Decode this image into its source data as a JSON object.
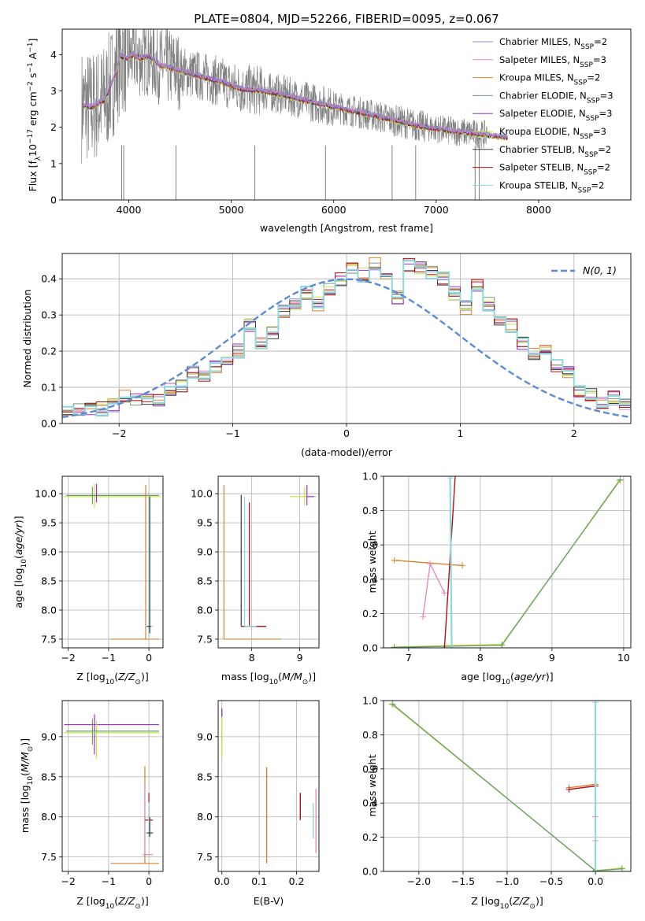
{
  "figure": {
    "title": "PLATE=0804, MJD=52266, FIBERID=0095, z=0.067"
  },
  "colors": {
    "Chabrier MILES": "#8c8cd0",
    "Salpeter MILES": "#e88ac0",
    "Kroupa MILES": "#d9822b",
    "Chabrier ELODIE": "#6f9f6f",
    "Salpeter ELODIE": "#9b30c8",
    "Kroupa ELODIE": "#c8e04a",
    "Chabrier STELIB": "#3a3a3a",
    "Salpeter STELIB": "#b01010",
    "Kroupa STELIB": "#8fd8dc",
    "data": "#808080",
    "normal": "#5b8bd6"
  },
  "chart_data": [
    {
      "id": "spectrum",
      "type": "line",
      "xlabel": "wavelength [Angstrom, rest frame]",
      "ylabel": "Flux [f_λ 10^-17 erg cm^-2 s^-1 A^-1]",
      "xlim": [
        3350,
        8900
      ],
      "ylim": [
        0,
        4.7
      ],
      "xticks": [
        4000,
        5000,
        6000,
        7000,
        8000
      ],
      "yticks": [
        0,
        1,
        2,
        3,
        4
      ],
      "grid": false,
      "legend_position": "top-right",
      "legend": [
        {
          "label": "Chabrier MILES, N",
          "sub": "SSP",
          "eq": "=2",
          "key": "Chabrier MILES"
        },
        {
          "label": "Salpeter MILES, N",
          "sub": "SSP",
          "eq": "=3",
          "key": "Salpeter MILES"
        },
        {
          "label": "Kroupa MILES, N",
          "sub": "SSP",
          "eq": "=2",
          "key": "Kroupa MILES"
        },
        {
          "label": "Chabrier ELODIE, N",
          "sub": "SSP",
          "eq": "=3",
          "key": "Chabrier ELODIE"
        },
        {
          "label": "Salpeter ELODIE, N",
          "sub": "SSP",
          "eq": "=3",
          "key": "Salpeter ELODIE"
        },
        {
          "label": "Kroupa ELODIE, N",
          "sub": "SSP",
          "eq": "=3",
          "key": "Kroupa ELODIE"
        },
        {
          "label": "Chabrier STELIB, N",
          "sub": "SSP",
          "eq": "=2",
          "key": "Chabrier STELIB"
        },
        {
          "label": "Salpeter STELIB, N",
          "sub": "SSP",
          "eq": "=2",
          "key": "Salpeter STELIB"
        },
        {
          "label": "Kroupa STELIB, N",
          "sub": "SSP",
          "eq": "=2",
          "key": "Kroupa STELIB"
        }
      ],
      "model_continuum": {
        "x": [
          3560,
          3640,
          3700,
          3760,
          3800,
          3860,
          3920,
          3980,
          4050,
          4100,
          4200,
          4300,
          4400,
          4500,
          4700,
          4900,
          5100,
          5300,
          5500,
          5700,
          5900,
          6100,
          6300,
          6500,
          6700,
          6900,
          7100,
          7300,
          7500,
          7700
        ],
        "y": [
          2.6,
          2.55,
          2.65,
          2.75,
          3.0,
          3.4,
          3.95,
          3.9,
          4.0,
          3.9,
          3.95,
          3.7,
          3.65,
          3.55,
          3.4,
          3.25,
          3.05,
          3.0,
          2.9,
          2.75,
          2.62,
          2.5,
          2.38,
          2.25,
          2.12,
          2.0,
          1.92,
          1.85,
          1.78,
          1.72
        ]
      }
    },
    {
      "id": "residuals",
      "type": "line",
      "xlabel": "(data-model)/error",
      "ylabel": "Normed distribution",
      "xlim": [
        -2.5,
        2.5
      ],
      "ylim": [
        0,
        0.47
      ],
      "xticks": [
        -2,
        -1,
        0,
        1,
        2
      ],
      "yticks": [
        0.0,
        0.1,
        0.2,
        0.3,
        0.4
      ],
      "grid": true,
      "legend_position": "top-right",
      "normal_label": "N(0, 1)",
      "bin_width": 0.1,
      "bin_start": -2.5,
      "hist": [
        0.03,
        0.035,
        0.04,
        0.04,
        0.05,
        0.075,
        0.065,
        0.07,
        0.06,
        0.095,
        0.1,
        0.14,
        0.135,
        0.16,
        0.18,
        0.2,
        0.27,
        0.22,
        0.25,
        0.31,
        0.33,
        0.36,
        0.33,
        0.37,
        0.4,
        0.43,
        0.41,
        0.44,
        0.4,
        0.35,
        0.44,
        0.43,
        0.42,
        0.4,
        0.36,
        0.32,
        0.38,
        0.33,
        0.29,
        0.27,
        0.22,
        0.19,
        0.2,
        0.16,
        0.14,
        0.09,
        0.08,
        0.06,
        0.07,
        0.05
      ]
    },
    {
      "id": "age-vs-Z",
      "type": "scatter",
      "xlabel": "Z [log10(Z/Z_sun)]",
      "ylabel": "age [log10(age/yr)]",
      "xlim": [
        -2.15,
        0.35
      ],
      "ylim": [
        7.35,
        10.3
      ],
      "xticks": [
        -2,
        -1,
        0
      ],
      "yticks": [
        7.5,
        8.0,
        8.5,
        9.0,
        9.5,
        10.0
      ],
      "grid": true
    },
    {
      "id": "age-vs-mass",
      "type": "scatter",
      "xlabel": "mass [log10(M/M_sun)]",
      "ylabel": "",
      "xlim": [
        7.3,
        9.4
      ],
      "ylim": [
        7.35,
        10.3
      ],
      "xticks": [
        8,
        9
      ],
      "yticks": [
        7.5,
        8.0,
        8.5,
        9.0,
        9.5,
        10.0
      ],
      "grid": true
    },
    {
      "id": "weight-vs-age",
      "type": "line",
      "xlabel": "age [log10(age/yr)]",
      "ylabel": "mass weight",
      "xlim": [
        6.65,
        10.1
      ],
      "ylim": [
        0,
        1.0
      ],
      "xticks": [
        7,
        8,
        9,
        10
      ],
      "yticks": [
        0.0,
        0.2,
        0.4,
        0.6,
        0.8,
        1.0
      ],
      "grid": true,
      "series": [
        {
          "key": "Kroupa ELODIE",
          "x": [
            6.8,
            8.3,
            9.95
          ],
          "y": [
            0.005,
            0.02,
            0.975
          ]
        },
        {
          "key": "Chabrier ELODIE",
          "x": [
            6.8,
            8.3,
            9.95
          ],
          "y": [
            0.003,
            0.015,
            0.98
          ]
        },
        {
          "key": "Kroupa MILES",
          "x": [
            6.8,
            7.75
          ],
          "y": [
            0.51,
            0.48
          ]
        },
        {
          "key": "Salpeter MILES",
          "x": [
            7.2,
            7.3,
            7.5
          ],
          "y": [
            0.18,
            0.49,
            0.32
          ]
        },
        {
          "key": "Salpeter STELIB",
          "x": [
            7.5,
            7.65
          ],
          "y": [
            0.0,
            1.0
          ]
        },
        {
          "key": "Kroupa STELIB",
          "x": [
            7.58,
            7.6
          ],
          "y": [
            0.99,
            0.0
          ]
        }
      ]
    },
    {
      "id": "mass-vs-Z",
      "type": "scatter",
      "xlabel": "Z [log10(Z/Z_sun)]",
      "ylabel": "mass [log10(M/M_sun)]",
      "xlim": [
        -2.15,
        0.35
      ],
      "ylim": [
        7.32,
        9.45
      ],
      "xticks": [
        -2,
        -1,
        0
      ],
      "yticks": [
        7.5,
        8.0,
        8.5,
        9.0
      ],
      "grid": true
    },
    {
      "id": "mass-vs-ebv",
      "type": "scatter",
      "xlabel": "E(B-V)",
      "ylabel": "",
      "xlim": [
        -0.01,
        0.26
      ],
      "ylim": [
        7.32,
        9.45
      ],
      "xticks": [
        0.0,
        0.1,
        0.2
      ],
      "yticks": [
        7.5,
        8.0,
        8.5,
        9.0
      ],
      "grid": true,
      "points": [
        {
          "key": "Salpeter ELODIE",
          "x": 0.0,
          "y": 9.28,
          "err": 0.07
        },
        {
          "key": "Kroupa ELODIE",
          "x": 0.0,
          "y": 9.0,
          "err": 0.25
        },
        {
          "key": "Kroupa MILES",
          "x": 0.12,
          "y": 8.02,
          "err": 0.6
        },
        {
          "key": "Salpeter STELIB",
          "x": 0.21,
          "y": 8.13,
          "err": 0.17
        },
        {
          "key": "Kroupa STELIB",
          "x": 0.245,
          "y": 7.95,
          "err": 0.22
        },
        {
          "key": "Salpeter MILES",
          "x": 0.252,
          "y": 7.95,
          "err": 0.4
        }
      ]
    },
    {
      "id": "weight-vs-Z",
      "type": "line",
      "xlabel": "Z [log10(Z/Z_sun)]",
      "ylabel": "mass weight",
      "xlim": [
        -2.4,
        0.4
      ],
      "ylim": [
        0,
        1.0
      ],
      "xticks": [
        -2.0,
        -1.5,
        -1.0,
        -0.5,
        0.0
      ],
      "yticks": [
        0.0,
        0.2,
        0.4,
        0.6,
        0.8,
        1.0
      ],
      "grid": true,
      "series": [
        {
          "key": "Kroupa ELODIE",
          "x": [
            -2.3,
            0.0,
            0.3
          ],
          "y": [
            0.975,
            0.005,
            0.02
          ]
        },
        {
          "key": "Chabrier ELODIE",
          "x": [
            -2.3,
            0.0,
            0.3
          ],
          "y": [
            0.98,
            0.003,
            0.015
          ]
        },
        {
          "key": "Kroupa MILES",
          "x": [
            -0.3,
            0.0
          ],
          "y": [
            0.49,
            0.51
          ]
        },
        {
          "key": "Salpeter STELIB",
          "x": [
            -0.3,
            0.0
          ],
          "y": [
            0.48,
            0.5
          ]
        },
        {
          "key": "Kroupa STELIB",
          "x": [
            0.0,
            0.0
          ],
          "y": [
            0.0,
            0.99
          ]
        }
      ]
    }
  ]
}
